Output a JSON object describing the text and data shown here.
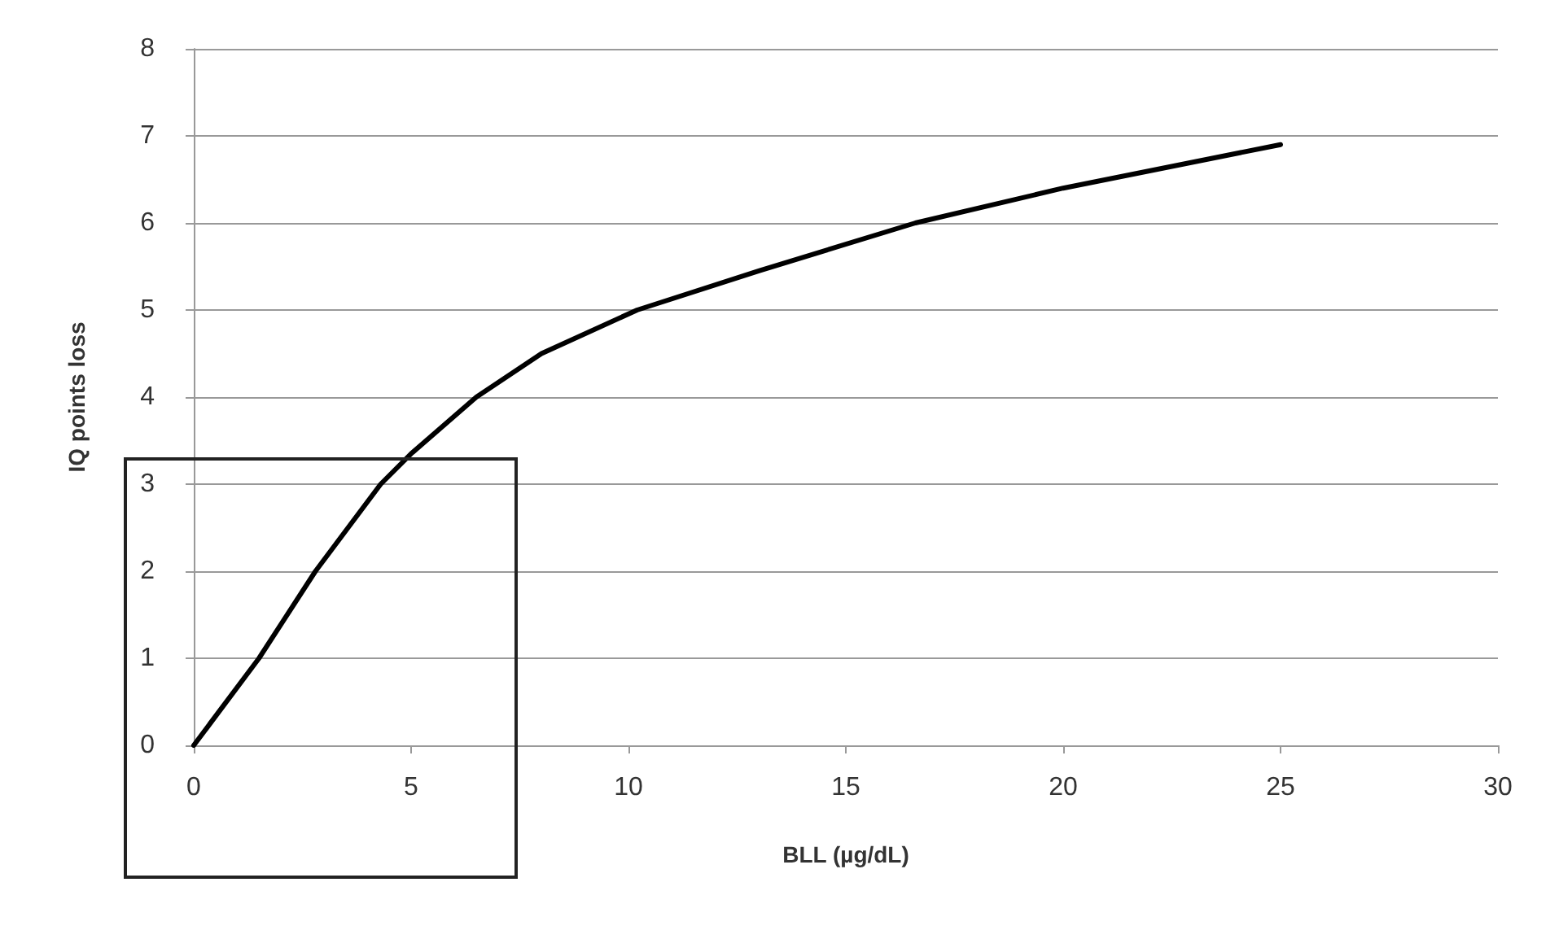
{
  "chart_data": {
    "type": "line",
    "xlabel": "BLL (µg/dL)",
    "ylabel": "IQ points loss",
    "x": [
      0,
      1.5,
      2.8,
      4.3,
      5,
      6.5,
      8,
      10.2,
      13,
      16.6,
      20,
      25
    ],
    "series": [
      {
        "color": "#000000",
        "values": [
          0,
          1,
          2,
          3,
          3.35,
          4,
          4.5,
          5,
          5.45,
          6,
          6.4,
          6.9
        ]
      }
    ],
    "xlim": [
      0,
      30
    ],
    "xticks": [
      0,
      5,
      10,
      15,
      20,
      25,
      30
    ],
    "ylim": [
      0,
      8
    ],
    "yticks": [
      0,
      1,
      2,
      3,
      4,
      5,
      6,
      7,
      8
    ],
    "grid": "y",
    "marker": "none",
    "line_style": "solid"
  }
}
